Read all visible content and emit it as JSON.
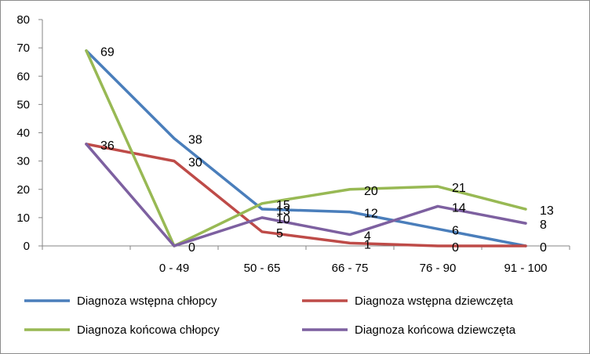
{
  "chart_data": {
    "type": "line",
    "categories": [
      "",
      "0 - 49",
      "50 - 65",
      "66 - 75",
      "76 - 90",
      "91 - 100"
    ],
    "ylim": [
      0,
      80
    ],
    "yticks": [
      0,
      10,
      20,
      30,
      40,
      50,
      60,
      70,
      80
    ],
    "grid": false,
    "legend_position": "bottom",
    "series": [
      {
        "name": "Diagnoza wstępna chłopcy",
        "color": "#4a7ebb",
        "values": [
          69,
          38,
          13,
          12,
          6,
          0
        ]
      },
      {
        "name": "Diagnoza wstępna dziewczęta",
        "color": "#be4b48",
        "values": [
          36,
          30,
          5,
          1,
          0,
          0
        ]
      },
      {
        "name": "Diagnoza końcowa chłopcy",
        "color": "#98b954",
        "values": [
          69,
          0,
          15,
          20,
          21,
          13
        ]
      },
      {
        "name": "Diagnoza końcowa dziewczęta",
        "color": "#7d60a0",
        "values": [
          36,
          0,
          10,
          4,
          14,
          8
        ]
      }
    ],
    "data_labels": [
      {
        "series": 0,
        "index": 0,
        "text": "69"
      },
      {
        "series": 0,
        "index": 1,
        "text": "38"
      },
      {
        "series": 0,
        "index": 2,
        "text": "13"
      },
      {
        "series": 0,
        "index": 3,
        "text": "12"
      },
      {
        "series": 0,
        "index": 4,
        "text": "6"
      },
      {
        "series": 0,
        "index": 5,
        "text": "0"
      },
      {
        "series": 1,
        "index": 0,
        "text": "36"
      },
      {
        "series": 1,
        "index": 1,
        "text": "30"
      },
      {
        "series": 1,
        "index": 2,
        "text": "5"
      },
      {
        "series": 1,
        "index": 3,
        "text": "1"
      },
      {
        "series": 1,
        "index": 4,
        "text": "0"
      },
      {
        "series": 2,
        "index": 1,
        "text": "0"
      },
      {
        "series": 2,
        "index": 2,
        "text": "15"
      },
      {
        "series": 2,
        "index": 3,
        "text": "20"
      },
      {
        "series": 2,
        "index": 4,
        "text": "21"
      },
      {
        "series": 2,
        "index": 5,
        "text": "13"
      },
      {
        "series": 3,
        "index": 2,
        "text": "10"
      },
      {
        "series": 3,
        "index": 3,
        "text": "4"
      },
      {
        "series": 3,
        "index": 4,
        "text": "14"
      },
      {
        "series": 3,
        "index": 5,
        "text": "8"
      }
    ]
  }
}
